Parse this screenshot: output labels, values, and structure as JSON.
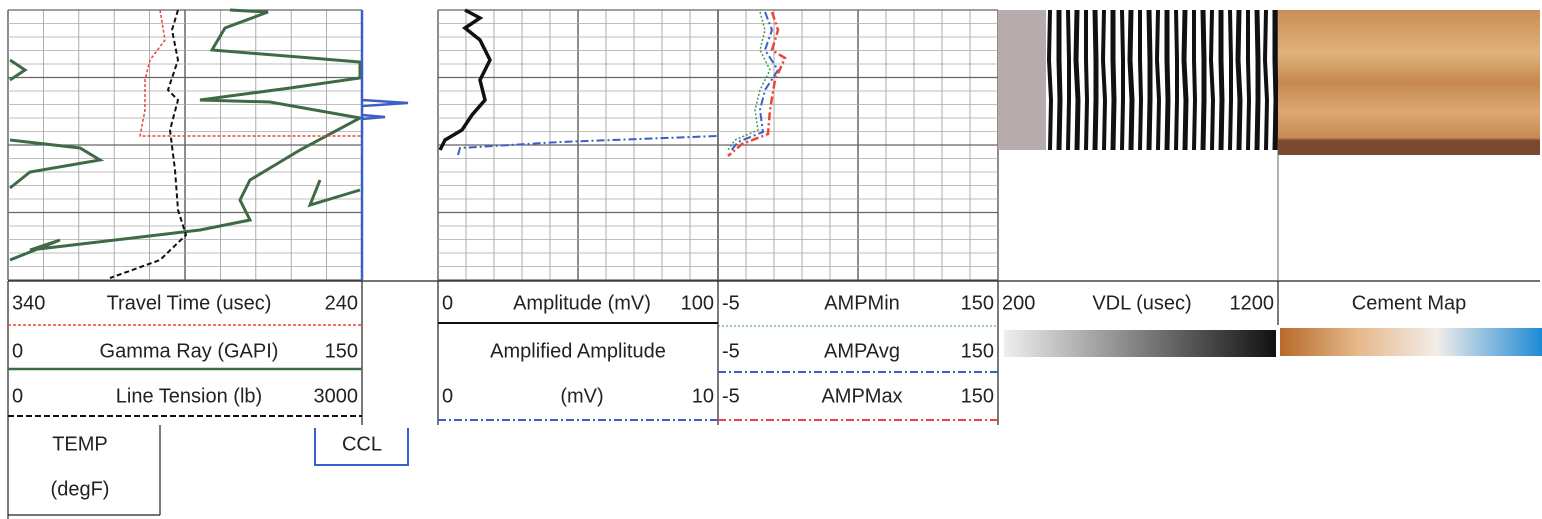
{
  "tracks": [
    {
      "legends": [
        {
          "left": "340",
          "label": "Travel Time (usec)",
          "right": "240"
        },
        {
          "left": "0",
          "label": "Gamma Ray (GAPI)",
          "right": "150"
        },
        {
          "left": "0",
          "label": "Line Tension (lb)",
          "right": "3000"
        }
      ],
      "temp": [
        "TEMP",
        "(degF)"
      ],
      "ccl": "CCL"
    },
    {
      "legends": [
        {
          "left": "0",
          "label": "Amplitude (mV)",
          "right": "100"
        },
        {
          "title": "Amplified Amplitude"
        },
        {
          "left": "0",
          "label": "(mV)",
          "right": "10"
        }
      ]
    },
    {
      "legends": [
        {
          "left": "-5",
          "label": "AMPMin",
          "right": "150"
        },
        {
          "left": "-5",
          "label": "AMPAvg",
          "right": "150"
        },
        {
          "left": "-5",
          "label": "AMPMax",
          "right": "150"
        }
      ]
    },
    {
      "legends": [
        {
          "left": "200",
          "label": "VDL (usec)",
          "right": "1200"
        }
      ]
    },
    {
      "legends": [
        {
          "title": "Cement Map"
        }
      ]
    }
  ]
}
